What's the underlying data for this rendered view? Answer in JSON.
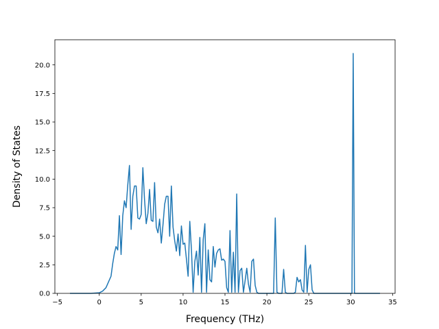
{
  "chart_data": {
    "type": "line",
    "title": "",
    "xlabel": "Frequency (THz)",
    "ylabel": "Density of States",
    "xlim": [
      -5.3,
      35.3
    ],
    "ylim": [
      0,
      22.2
    ],
    "xticks": [
      -5,
      0,
      5,
      10,
      15,
      20,
      25,
      30,
      35
    ],
    "xtick_labels": [
      "−5",
      "0",
      "5",
      "10",
      "15",
      "20",
      "25",
      "30",
      "35"
    ],
    "yticks": [
      0,
      2.5,
      5,
      7.5,
      10,
      12.5,
      15,
      17.5,
      20
    ],
    "ytick_labels": [
      "0.0",
      "2.5",
      "5.0",
      "7.5",
      "10.0",
      "12.5",
      "15.0",
      "17.5",
      "20.0"
    ],
    "grid": false,
    "color": "#1f77b4",
    "series": [
      {
        "x": [
          -3.5,
          -2,
          -1,
          0,
          0.4,
          0.8,
          1.1,
          1.4,
          1.6,
          1.8,
          2.0,
          2.2,
          2.4,
          2.6,
          2.8,
          3.0,
          3.2,
          3.4,
          3.6,
          3.8,
          4.0,
          4.2,
          4.4,
          4.6,
          4.8,
          5.0,
          5.2,
          5.4,
          5.6,
          5.8,
          6.0,
          6.2,
          6.4,
          6.6,
          6.8,
          7.0,
          7.2,
          7.4,
          7.6,
          7.8,
          8.0,
          8.2,
          8.4,
          8.6,
          8.8,
          9.0,
          9.2,
          9.4,
          9.6,
          9.8,
          10.0,
          10.2,
          10.4,
          10.6,
          10.8,
          11.0,
          11.2,
          11.4,
          11.6,
          11.8,
          12.0,
          12.2,
          12.4,
          12.6,
          12.8,
          13.0,
          13.2,
          13.4,
          13.6,
          13.8,
          14.0,
          14.2,
          14.4,
          14.6,
          14.8,
          15.0,
          15.2,
          15.4,
          15.6,
          15.8,
          16.0,
          16.2,
          16.4,
          16.6,
          16.8,
          17.0,
          17.2,
          17.4,
          17.6,
          17.8,
          18.0,
          18.2,
          18.4,
          18.6,
          18.8,
          19.0,
          19.2,
          19.4,
          19.6,
          19.8,
          20.0,
          20.2,
          20.4,
          20.6,
          20.8,
          21.0,
          21.2,
          21.4,
          21.6,
          21.8,
          22.0,
          22.2,
          22.4,
          22.6,
          22.8,
          23.0,
          23.2,
          23.4,
          23.6,
          23.8,
          24.0,
          24.2,
          24.4,
          24.6,
          24.8,
          25.0,
          25.2,
          25.4,
          25.6,
          26.0,
          27.0,
          28.0,
          29.0,
          29.8,
          30.0,
          30.15,
          30.3,
          30.45,
          30.6,
          31.0,
          32.0,
          33.5
        ],
        "y": [
          0,
          0,
          0,
          0.05,
          0.2,
          0.5,
          1.0,
          1.5,
          2.6,
          3.5,
          4.1,
          3.8,
          6.8,
          3.4,
          6.8,
          8.1,
          7.5,
          9.5,
          11.2,
          5.6,
          8.5,
          9.4,
          9.4,
          6.6,
          6.5,
          6.9,
          11.0,
          8.2,
          6.1,
          7.0,
          9.1,
          6.4,
          6.3,
          9.7,
          5.8,
          5.3,
          6.5,
          4.4,
          6.0,
          7.8,
          8.5,
          8.5,
          5.0,
          9.4,
          5.8,
          4.6,
          3.7,
          5.2,
          3.3,
          5.9,
          4.3,
          4.4,
          3.0,
          1.5,
          6.3,
          3.8,
          0.1,
          2.8,
          3.7,
          1.6,
          4.9,
          0.1,
          4.7,
          6.1,
          0.1,
          3.8,
          1.2,
          1.0,
          4.1,
          2.3,
          3.5,
          3.8,
          3.9,
          2.9,
          3.0,
          2.8,
          0.5,
          0.1,
          5.5,
          0.1,
          3.6,
          0.1,
          8.7,
          0.1,
          2.0,
          2.2,
          0.1,
          1.1,
          2.2,
          0.8,
          0.1,
          2.8,
          3.0,
          0.7,
          0.1,
          0,
          0,
          0,
          0,
          0,
          0,
          0,
          0,
          0,
          0,
          6.6,
          0.1,
          0,
          0,
          0,
          2.1,
          0.1,
          0,
          0,
          0,
          0,
          0,
          0.1,
          1.4,
          1.0,
          1.2,
          0.3,
          0.1,
          4.2,
          0.1,
          2.1,
          2.5,
          0.3,
          0,
          0,
          0,
          0,
          0,
          0,
          0,
          0,
          21.0,
          0,
          0,
          0,
          0,
          0
        ]
      }
    ]
  }
}
